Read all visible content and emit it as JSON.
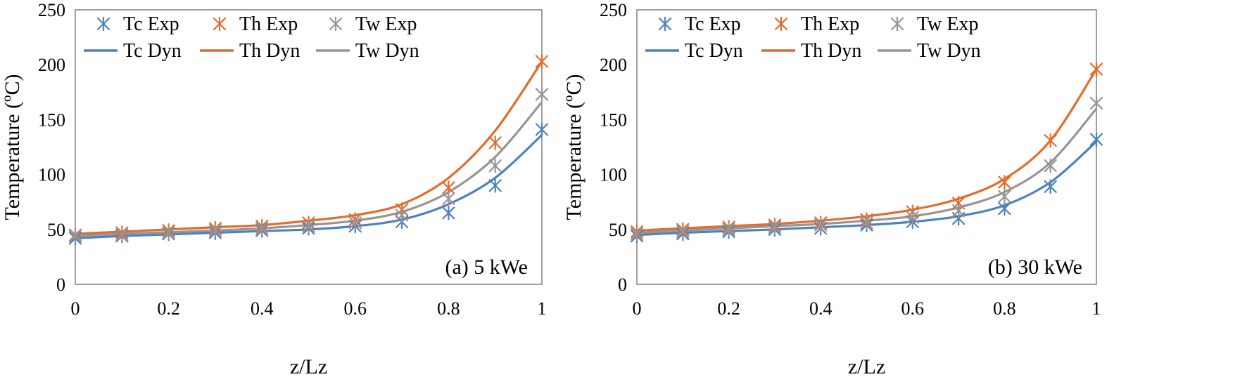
{
  "colors": {
    "Tc": "#4F81BD",
    "Th": "#E36C2A",
    "Tw": "#969696"
  },
  "chart_data": [
    {
      "type": "line",
      "panel_label": "(a) 5 kWe",
      "xlabel": "z/Lz",
      "ylabel": "Temperature (ºC)",
      "xlim": [
        0,
        1
      ],
      "ylim": [
        0,
        250
      ],
      "xticks": [
        "0",
        "0.2",
        "0.4",
        "0.6",
        "0.8",
        "1"
      ],
      "yticks": [
        "0",
        "50",
        "100",
        "150",
        "200",
        "250"
      ],
      "grid": false,
      "legend": "top",
      "x": [
        0,
        0.1,
        0.2,
        0.3,
        0.4,
        0.5,
        0.6,
        0.7,
        0.8,
        0.9,
        1.0
      ],
      "series": [
        {
          "name": "Tc Exp",
          "kind": "marker",
          "color_key": "Tc",
          "values": [
            42,
            44,
            46,
            47,
            49,
            51,
            53,
            57,
            65,
            90,
            141
          ]
        },
        {
          "name": "Th Exp",
          "kind": "marker",
          "color_key": "Th",
          "values": [
            45,
            47,
            49,
            51,
            53,
            56,
            59,
            68,
            88,
            129,
            203
          ]
        },
        {
          "name": "Tw Exp",
          "kind": "marker",
          "color_key": "Tw",
          "values": [
            44,
            45,
            47,
            49,
            51,
            53,
            56,
            63,
            78,
            108,
            173
          ]
        },
        {
          "name": "Tc Dyn",
          "kind": "line",
          "color_key": "Tc",
          "values": [
            42,
            44,
            45.5,
            47,
            48.5,
            50,
            53,
            59,
            73,
            97,
            136
          ]
        },
        {
          "name": "Th Dyn",
          "kind": "line",
          "color_key": "Th",
          "values": [
            46,
            48,
            50,
            52,
            54,
            58,
            63,
            73,
            97,
            140,
            203
          ]
        },
        {
          "name": "Tw Dyn",
          "kind": "line",
          "color_key": "Tw",
          "values": [
            44,
            46,
            47.5,
            49,
            51,
            54,
            58,
            66,
            84,
            116,
            166
          ]
        }
      ]
    },
    {
      "type": "line",
      "panel_label": "(b) 30 kWe",
      "xlabel": "z/Lz",
      "ylabel": "Temperature (ºC)",
      "xlim": [
        0,
        1
      ],
      "ylim": [
        0,
        250
      ],
      "xticks": [
        "0",
        "0.2",
        "0.4",
        "0.6",
        "0.8",
        "1"
      ],
      "yticks": [
        "0",
        "50",
        "100",
        "150",
        "200",
        "250"
      ],
      "grid": false,
      "legend": "top",
      "x": [
        0,
        0.1,
        0.2,
        0.3,
        0.4,
        0.5,
        0.6,
        0.7,
        0.8,
        0.9,
        1.0
      ],
      "series": [
        {
          "name": "Tc Exp",
          "kind": "marker",
          "color_key": "Tc",
          "values": [
            44,
            46,
            48,
            50,
            51,
            54,
            57,
            60,
            69,
            89,
            132
          ]
        },
        {
          "name": "Th Exp",
          "kind": "marker",
          "color_key": "Th",
          "values": [
            48,
            50,
            52,
            54,
            56,
            59,
            66,
            74,
            93,
            131,
            196
          ]
        },
        {
          "name": "Tw Exp",
          "kind": "marker",
          "color_key": "Tw",
          "values": [
            46,
            48,
            50,
            52,
            54,
            56,
            61,
            67,
            80,
            108,
            165
          ]
        },
        {
          "name": "Tc Dyn",
          "kind": "line",
          "color_key": "Tc",
          "values": [
            45,
            47,
            48.5,
            50,
            52,
            54,
            57,
            62,
            72,
            93,
            130
          ]
        },
        {
          "name": "Th Dyn",
          "kind": "line",
          "color_key": "Th",
          "values": [
            49,
            51,
            53,
            55,
            58,
            62,
            68,
            78,
            96,
            131,
            196
          ]
        },
        {
          "name": "Tw Dyn",
          "kind": "line",
          "color_key": "Tw",
          "values": [
            47,
            49,
            51,
            53,
            55,
            58,
            62,
            70,
            84,
            111,
            160
          ]
        }
      ]
    }
  ]
}
